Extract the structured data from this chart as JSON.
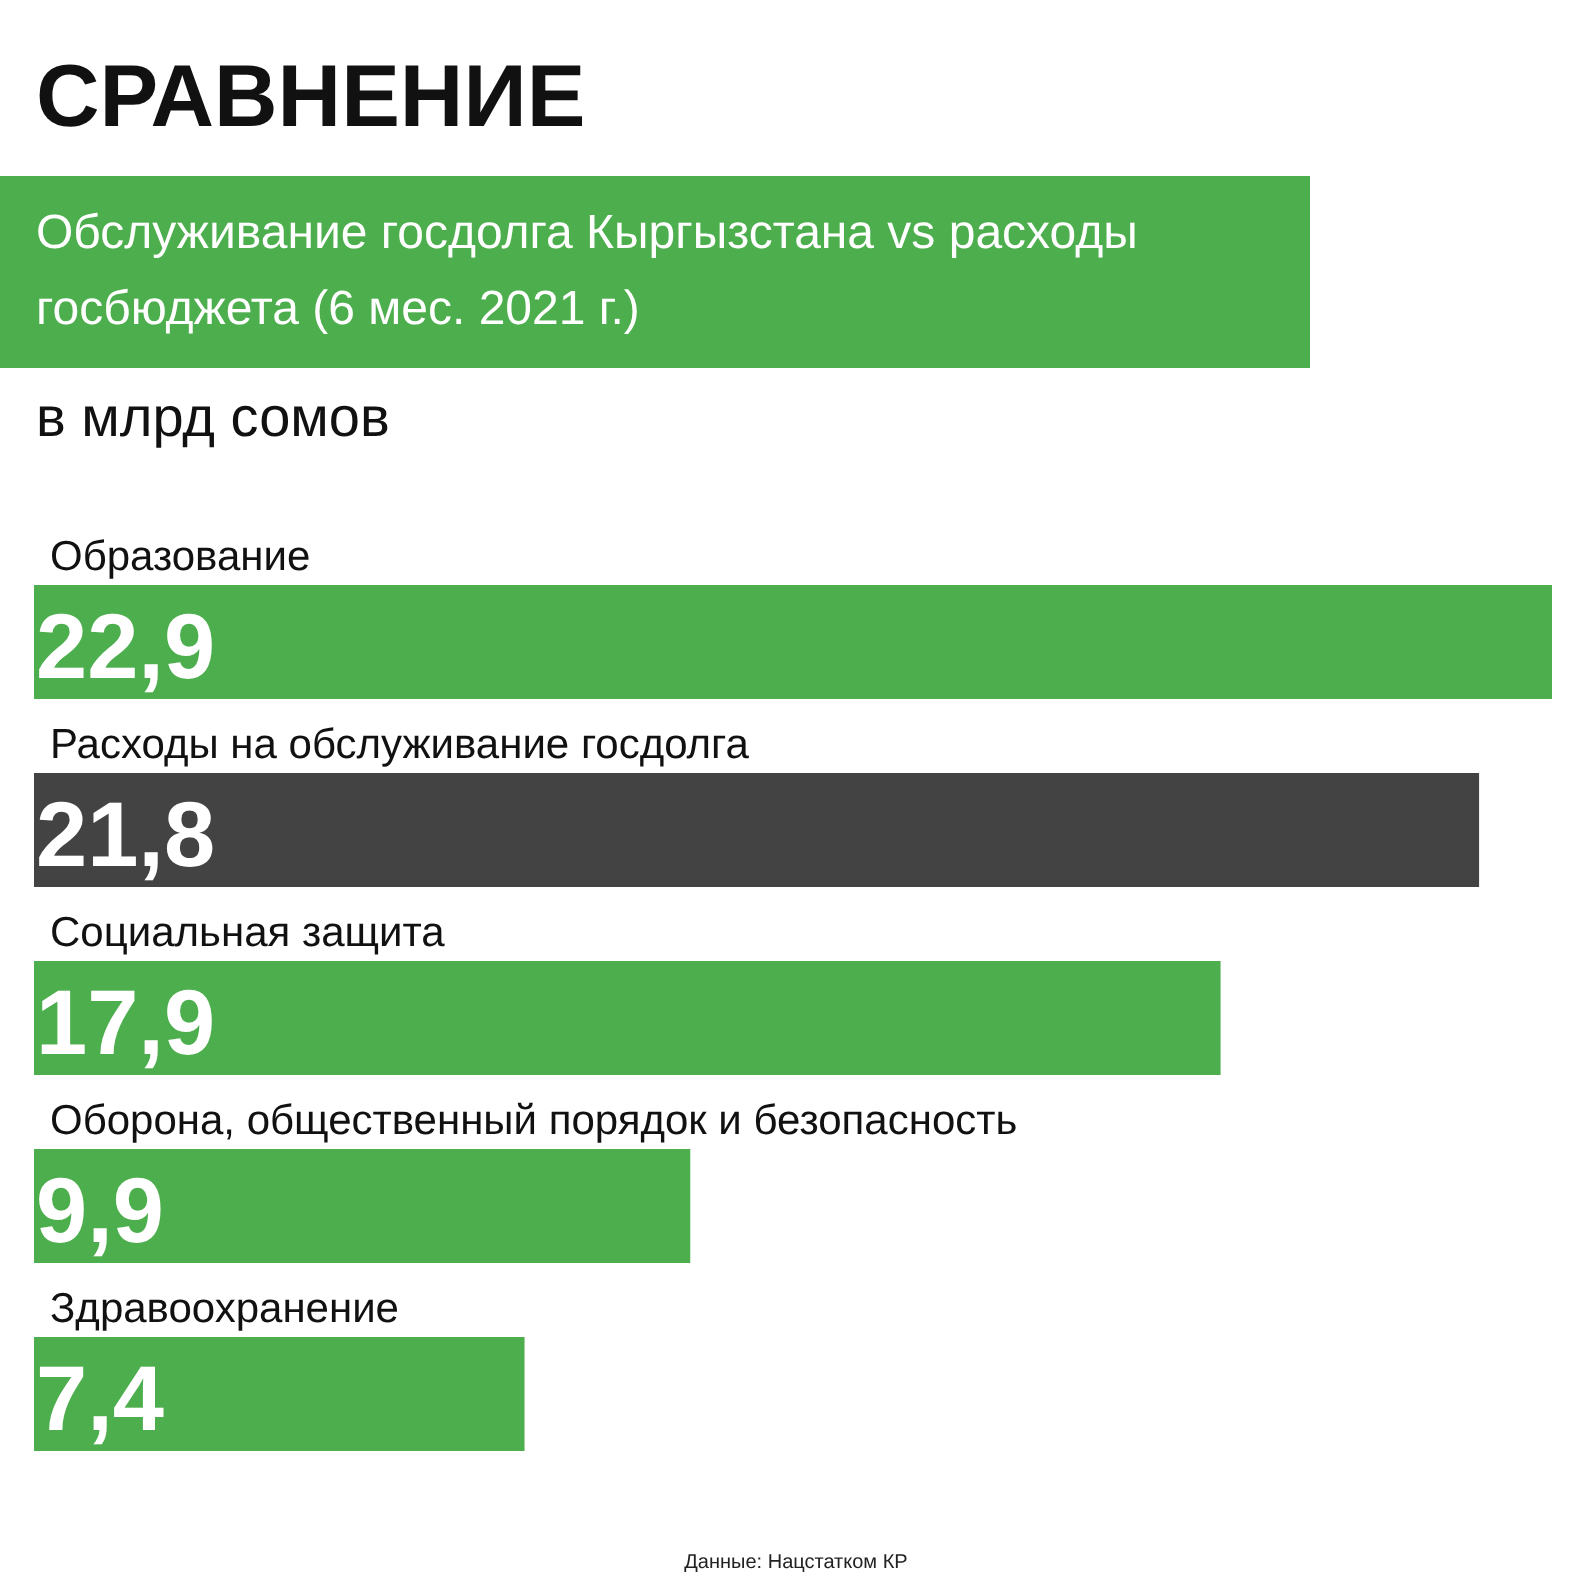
{
  "chart_data": {
    "type": "bar",
    "orientation": "horizontal",
    "title": "СРАВНЕНИЕ",
    "subtitle": "Обслуживание госдолга Кыргызстана vs расходы госбюджета (6 мес. 2021 г.)",
    "xlabel": "в млрд сомов",
    "categories": [
      "Образование",
      "Расходы на обслуживание госдолга",
      "Социальная защита",
      "Оборона, общественный порядок и безопасность",
      "Здравоохранение"
    ],
    "values": [
      22.9,
      21.8,
      17.9,
      9.9,
      7.4
    ],
    "colors": [
      "#4cae4c",
      "#434343",
      "#4cae4c",
      "#4cae4c",
      "#4cae4c"
    ],
    "value_labels": [
      "22,9",
      "21,8",
      "17,9",
      "9,9",
      "7,4"
    ],
    "annotations": [
      "Данные: Нацстатком КР"
    ]
  }
}
